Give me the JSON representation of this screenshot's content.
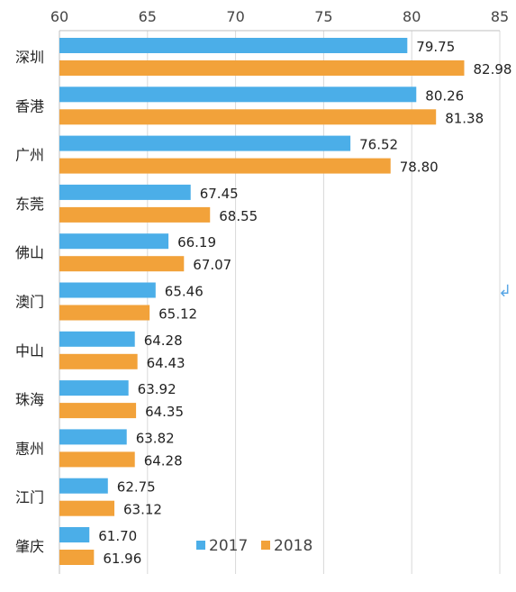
{
  "chart_data": {
    "type": "bar",
    "orientation": "horizontal",
    "categories": [
      "深圳",
      "香港",
      "广州",
      "东莞",
      "佛山",
      "澳门",
      "中山",
      "珠海",
      "惠州",
      "江门",
      "肇庆"
    ],
    "series": [
      {
        "name": "2017",
        "color": "#4baee8",
        "values": [
          79.75,
          80.26,
          76.52,
          67.45,
          66.19,
          65.46,
          64.28,
          63.92,
          63.82,
          62.75,
          61.7
        ],
        "labels": [
          "79.75",
          "80.26",
          "76.52",
          "67.45",
          "66.19",
          "65.46",
          "64.28",
          "63.92",
          "63.82",
          "62.75",
          "61.70"
        ]
      },
      {
        "name": "2018",
        "color": "#f2a23a",
        "values": [
          82.98,
          81.38,
          78.8,
          68.55,
          67.07,
          65.12,
          64.43,
          64.35,
          64.28,
          63.12,
          61.96
        ],
        "labels": [
          "82.98",
          "81.38",
          "78.80",
          "68.55",
          "67.07",
          "65.12",
          "64.43",
          "64.35",
          "64.28",
          "63.12",
          "61.96"
        ]
      }
    ],
    "xlim": [
      60,
      85
    ],
    "ticks": [
      "60",
      "65",
      "70",
      "75",
      "80",
      "85"
    ],
    "tick_values": [
      60,
      65,
      70,
      75,
      80,
      85
    ],
    "grid": true,
    "legend_position": "bottom-center"
  },
  "decoration": {
    "return_mark": "↲"
  }
}
